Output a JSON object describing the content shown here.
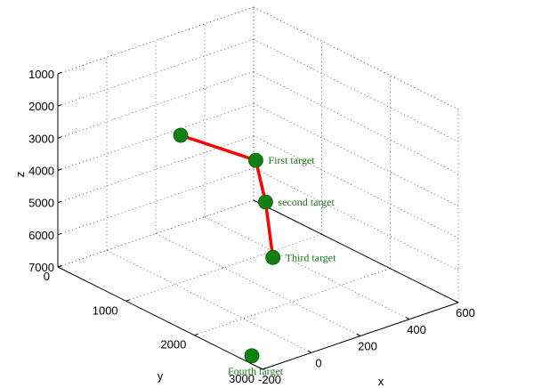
{
  "chart_data": {
    "type": "line3d",
    "title": "",
    "xlabel": "x",
    "ylabel": "y",
    "zlabel": "z",
    "xlim": [
      -200,
      600
    ],
    "ylim": [
      0,
      3000
    ],
    "zlim": [
      1000,
      7000
    ],
    "z_reversed": true,
    "xticks": [
      "-200",
      "0",
      "200",
      "400",
      "600"
    ],
    "yticks": [
      "0",
      "1000",
      "2000",
      "3000"
    ],
    "zticks": [
      "1000",
      "2000",
      "3000",
      "4000",
      "5000",
      "6000",
      "7000"
    ],
    "grid": true,
    "path_color": "#ff0000",
    "marker_color": "#108010",
    "path": [
      {
        "x": -200,
        "y": 1800,
        "z": 1000,
        "label": ""
      },
      {
        "x": 330,
        "y": 1000,
        "z": 4000,
        "label": "First target"
      },
      {
        "x": 370,
        "y": 1000,
        "z": 5400,
        "label": "second target"
      },
      {
        "x": 400,
        "y": 1000,
        "z": 7200,
        "label": "Third target"
      }
    ],
    "points": [
      {
        "x": -160,
        "y": 2700,
        "z": 7000,
        "label": "Fourth target"
      }
    ]
  }
}
